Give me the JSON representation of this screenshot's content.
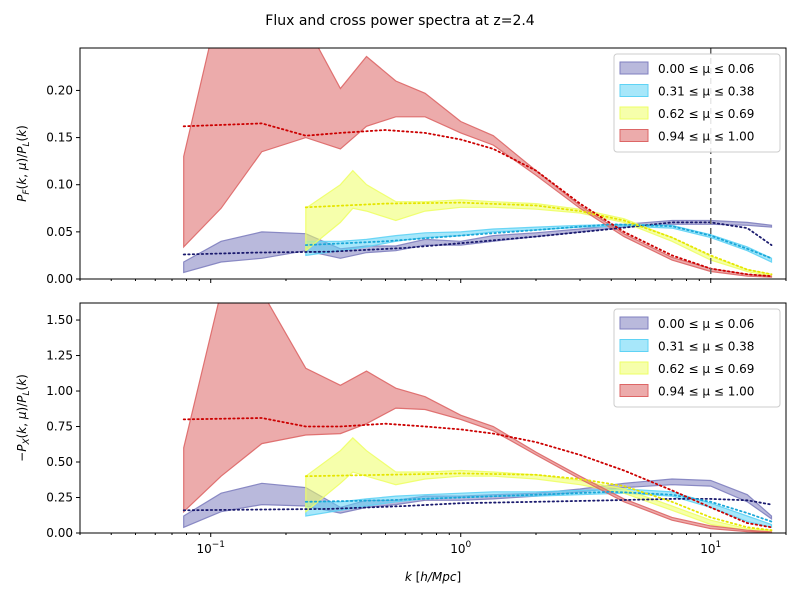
{
  "figure": {
    "title": "Flux and cross power spectra at z=2.4"
  },
  "chart_data": [
    {
      "type": "area",
      "panel": "top",
      "xscale": "log",
      "xlim": [
        0.03,
        20
      ],
      "ylim": [
        0,
        0.245
      ],
      "xlabel": "",
      "ylabel": "P_F(k, μ)/P_L(k)",
      "yticks": [
        0.0,
        0.05,
        0.1,
        0.15,
        0.2
      ],
      "ytick_labels": [
        "0.00",
        "0.05",
        "0.10",
        "0.15",
        "0.20"
      ],
      "vline": 10,
      "legend_position": "top-right",
      "series": [
        {
          "name": "0.00  ≤ μ ≤  0.06",
          "color": "#7f7fbf",
          "line_color": "#1a1a6e",
          "x": [
            0.078,
            0.11,
            0.16,
            0.24,
            0.33,
            0.42,
            0.55,
            0.72,
            1.0,
            1.35,
            2.0,
            3.0,
            4.5,
            7.0,
            10.0,
            14.0,
            17.5
          ],
          "low": [
            0.007,
            0.018,
            0.022,
            0.03,
            0.022,
            0.028,
            0.03,
            0.036,
            0.036,
            0.04,
            0.045,
            0.05,
            0.055,
            0.058,
            0.058,
            0.057,
            0.055
          ],
          "high": [
            0.018,
            0.04,
            0.05,
            0.048,
            0.032,
            0.035,
            0.035,
            0.042,
            0.04,
            0.046,
            0.049,
            0.053,
            0.058,
            0.062,
            0.062,
            0.06,
            0.057
          ],
          "line_x": [
            0.078,
            0.15,
            0.3,
            0.6,
            1.0,
            2.0,
            4.0,
            7.0,
            10.0,
            14.0,
            17.5
          ],
          "line": [
            0.026,
            0.028,
            0.029,
            0.033,
            0.038,
            0.045,
            0.053,
            0.06,
            0.06,
            0.054,
            0.036
          ]
        },
        {
          "name": "0.31  ≤ μ ≤  0.38",
          "color": "#5fd3f5",
          "line_color": "#1aa7d8",
          "x": [
            0.24,
            0.33,
            0.42,
            0.55,
            0.72,
            1.0,
            1.35,
            2.0,
            3.0,
            4.5,
            7.0,
            10.0,
            14.0,
            17.5
          ],
          "low": [
            0.025,
            0.03,
            0.034,
            0.04,
            0.044,
            0.046,
            0.05,
            0.052,
            0.055,
            0.056,
            0.054,
            0.044,
            0.03,
            0.018
          ],
          "high": [
            0.04,
            0.04,
            0.042,
            0.046,
            0.049,
            0.05,
            0.053,
            0.055,
            0.057,
            0.058,
            0.057,
            0.047,
            0.034,
            0.022
          ],
          "line_x": [
            0.24,
            0.5,
            1.0,
            2.0,
            4.0,
            7.0,
            10.0,
            14.0,
            17.5
          ],
          "line": [
            0.036,
            0.04,
            0.046,
            0.052,
            0.058,
            0.056,
            0.046,
            0.032,
            0.022
          ]
        },
        {
          "name": "0.62  ≤ μ ≤  0.69",
          "color": "#eeff66",
          "line_color": "#e5e500",
          "x": [
            0.24,
            0.33,
            0.37,
            0.42,
            0.55,
            0.72,
            1.0,
            1.35,
            2.0,
            3.0,
            4.5,
            7.0,
            10.0,
            14.0,
            17.5
          ],
          "low": [
            0.03,
            0.06,
            0.075,
            0.072,
            0.062,
            0.072,
            0.076,
            0.076,
            0.074,
            0.07,
            0.06,
            0.04,
            0.02,
            0.008,
            0.003
          ],
          "high": [
            0.075,
            0.1,
            0.115,
            0.1,
            0.082,
            0.082,
            0.084,
            0.082,
            0.08,
            0.074,
            0.064,
            0.044,
            0.024,
            0.01,
            0.005
          ],
          "line_x": [
            0.24,
            0.5,
            1.0,
            2.0,
            3.0,
            4.5,
            7.0,
            10.0,
            14.0,
            17.5
          ],
          "line": [
            0.076,
            0.08,
            0.081,
            0.078,
            0.072,
            0.062,
            0.044,
            0.025,
            0.01,
            0.005
          ]
        },
        {
          "name": "0.94  ≤ μ ≤  1.00",
          "color": "#dd6666",
          "line_color": "#cc0000",
          "x": [
            0.078,
            0.11,
            0.16,
            0.24,
            0.33,
            0.42,
            0.55,
            0.72,
            1.0,
            1.35,
            2.0,
            3.0,
            4.5,
            7.0,
            10.0,
            14.0,
            17.5
          ],
          "low": [
            0.034,
            0.075,
            0.135,
            0.15,
            0.138,
            0.162,
            0.172,
            0.172,
            0.155,
            0.142,
            0.11,
            0.075,
            0.045,
            0.02,
            0.008,
            0.003,
            0.002
          ],
          "high": [
            0.13,
            0.3,
            0.3,
            0.27,
            0.202,
            0.236,
            0.21,
            0.197,
            0.167,
            0.152,
            0.115,
            0.078,
            0.048,
            0.023,
            0.011,
            0.005,
            0.003
          ],
          "line_x": [
            0.078,
            0.16,
            0.24,
            0.33,
            0.5,
            0.72,
            1.0,
            1.35,
            2.0,
            3.0,
            4.5,
            7.0,
            10.0,
            14.0,
            17.5
          ],
          "line": [
            0.162,
            0.165,
            0.152,
            0.155,
            0.158,
            0.155,
            0.148,
            0.138,
            0.115,
            0.08,
            0.05,
            0.025,
            0.011,
            0.005,
            0.003
          ]
        }
      ]
    },
    {
      "type": "area",
      "panel": "bottom",
      "xscale": "log",
      "xlim": [
        0.03,
        20
      ],
      "ylim": [
        0,
        1.62
      ],
      "xlabel": "k [h/Mpc]",
      "ylabel": "−P_X(k, μ)/P_L(k)",
      "yticks": [
        0.0,
        0.25,
        0.5,
        0.75,
        1.0,
        1.25,
        1.5
      ],
      "ytick_labels": [
        "0.00",
        "0.25",
        "0.50",
        "0.75",
        "1.00",
        "1.25",
        "1.50"
      ],
      "xticks": [
        0.1,
        1,
        10
      ],
      "legend_position": "top-right",
      "series": [
        {
          "name": "0.00  ≤ μ ≤  0.06",
          "color": "#7f7fbf",
          "line_color": "#1a1a6e",
          "x": [
            0.078,
            0.11,
            0.16,
            0.24,
            0.33,
            0.42,
            0.55,
            0.72,
            1.0,
            1.35,
            2.0,
            3.0,
            4.5,
            7.0,
            10.0,
            14.0,
            17.5
          ],
          "low": [
            0.04,
            0.15,
            0.2,
            0.19,
            0.14,
            0.18,
            0.2,
            0.23,
            0.23,
            0.24,
            0.26,
            0.29,
            0.32,
            0.34,
            0.33,
            0.22,
            0.1
          ],
          "high": [
            0.12,
            0.28,
            0.35,
            0.32,
            0.18,
            0.23,
            0.23,
            0.26,
            0.26,
            0.27,
            0.28,
            0.31,
            0.35,
            0.38,
            0.37,
            0.27,
            0.12
          ],
          "line_x": [
            0.078,
            0.15,
            0.3,
            0.6,
            1.0,
            2.0,
            4.0,
            7.0,
            10.0,
            14.0,
            17.5
          ],
          "line": [
            0.16,
            0.165,
            0.17,
            0.19,
            0.21,
            0.22,
            0.23,
            0.24,
            0.24,
            0.23,
            0.2
          ]
        },
        {
          "name": "0.31  ≤ μ ≤  0.38",
          "color": "#5fd3f5",
          "line_color": "#1aa7d8",
          "x": [
            0.24,
            0.33,
            0.42,
            0.55,
            0.72,
            1.0,
            1.35,
            2.0,
            3.0,
            4.5,
            7.0,
            10.0,
            14.0,
            17.5
          ],
          "low": [
            0.12,
            0.16,
            0.19,
            0.22,
            0.24,
            0.25,
            0.26,
            0.26,
            0.27,
            0.28,
            0.26,
            0.18,
            0.08,
            0.04
          ],
          "high": [
            0.22,
            0.22,
            0.24,
            0.26,
            0.27,
            0.28,
            0.29,
            0.29,
            0.3,
            0.31,
            0.29,
            0.21,
            0.12,
            0.06
          ],
          "line_x": [
            0.24,
            0.5,
            1.0,
            2.0,
            4.0,
            7.0,
            10.0,
            14.0,
            17.5
          ],
          "line": [
            0.22,
            0.23,
            0.25,
            0.27,
            0.29,
            0.27,
            0.22,
            0.14,
            0.08
          ]
        },
        {
          "name": "0.62  ≤ μ ≤  0.69",
          "color": "#eeff66",
          "line_color": "#e5e500",
          "x": [
            0.24,
            0.33,
            0.37,
            0.42,
            0.55,
            0.72,
            1.0,
            1.35,
            2.0,
            3.0,
            4.5,
            7.0,
            10.0,
            14.0,
            17.5
          ],
          "low": [
            0.15,
            0.35,
            0.43,
            0.4,
            0.34,
            0.38,
            0.4,
            0.4,
            0.38,
            0.34,
            0.28,
            0.16,
            0.06,
            0.02,
            0.01
          ],
          "high": [
            0.4,
            0.58,
            0.67,
            0.58,
            0.43,
            0.43,
            0.44,
            0.43,
            0.41,
            0.37,
            0.31,
            0.19,
            0.09,
            0.03,
            0.02
          ],
          "line_x": [
            0.24,
            0.5,
            1.0,
            2.0,
            3.0,
            4.5,
            7.0,
            10.0,
            14.0,
            17.5
          ],
          "line": [
            0.4,
            0.41,
            0.42,
            0.41,
            0.38,
            0.33,
            0.22,
            0.11,
            0.04,
            0.02
          ]
        },
        {
          "name": "0.94  ≤ μ ≤  1.00",
          "color": "#dd6666",
          "line_color": "#cc0000",
          "x": [
            0.078,
            0.11,
            0.16,
            0.24,
            0.33,
            0.42,
            0.55,
            0.72,
            1.0,
            1.35,
            2.0,
            3.0,
            4.5,
            7.0,
            10.0,
            14.0,
            17.5
          ],
          "low": [
            0.15,
            0.4,
            0.63,
            0.69,
            0.7,
            0.77,
            0.88,
            0.87,
            0.8,
            0.72,
            0.55,
            0.38,
            0.22,
            0.09,
            0.03,
            0.01,
            0.005
          ],
          "high": [
            0.6,
            1.7,
            1.7,
            1.16,
            1.04,
            1.14,
            1.02,
            0.96,
            0.83,
            0.75,
            0.57,
            0.4,
            0.24,
            0.11,
            0.05,
            0.02,
            0.008
          ],
          "line_x": [
            0.078,
            0.16,
            0.24,
            0.33,
            0.5,
            0.72,
            1.0,
            1.35,
            2.0,
            3.0,
            4.5,
            7.0,
            10.0,
            14.0,
            17.5
          ],
          "line": [
            0.8,
            0.81,
            0.75,
            0.75,
            0.77,
            0.75,
            0.73,
            0.7,
            0.64,
            0.55,
            0.44,
            0.3,
            0.18,
            0.07,
            0.04
          ]
        }
      ]
    }
  ]
}
